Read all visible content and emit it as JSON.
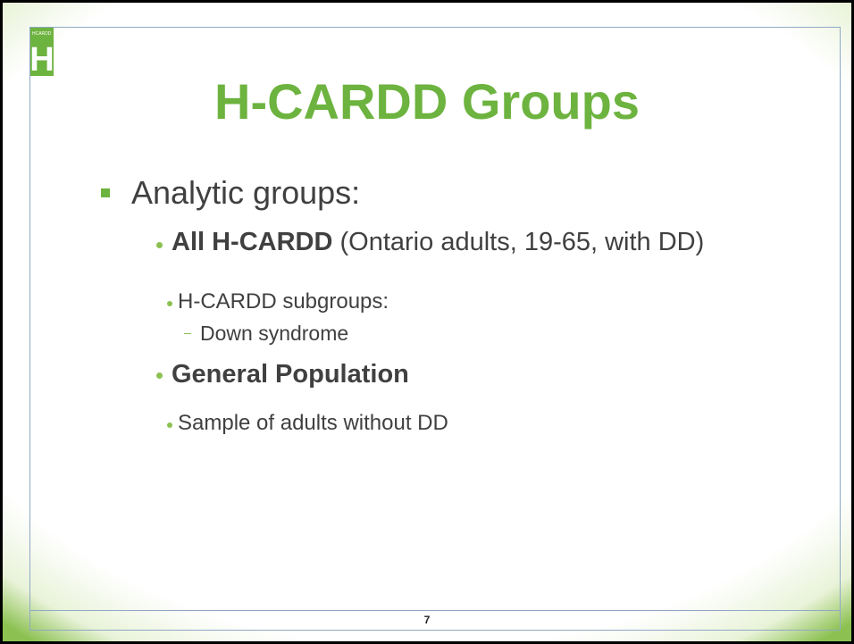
{
  "logo": {
    "text": "HCARDD",
    "letter": "H"
  },
  "title": "H-CARDD Groups",
  "bullets": {
    "l1": "Analytic groups:",
    "item1": {
      "bold": "All H-CARDD",
      "text": "(Ontario adults, 19-65, with DD)",
      "sub": "H-CARDD subgroups:",
      "subsub": "Down syndrome"
    },
    "item2": {
      "bold": "General Population",
      "sub": "Sample of adults without DD"
    }
  },
  "page_number": "7"
}
